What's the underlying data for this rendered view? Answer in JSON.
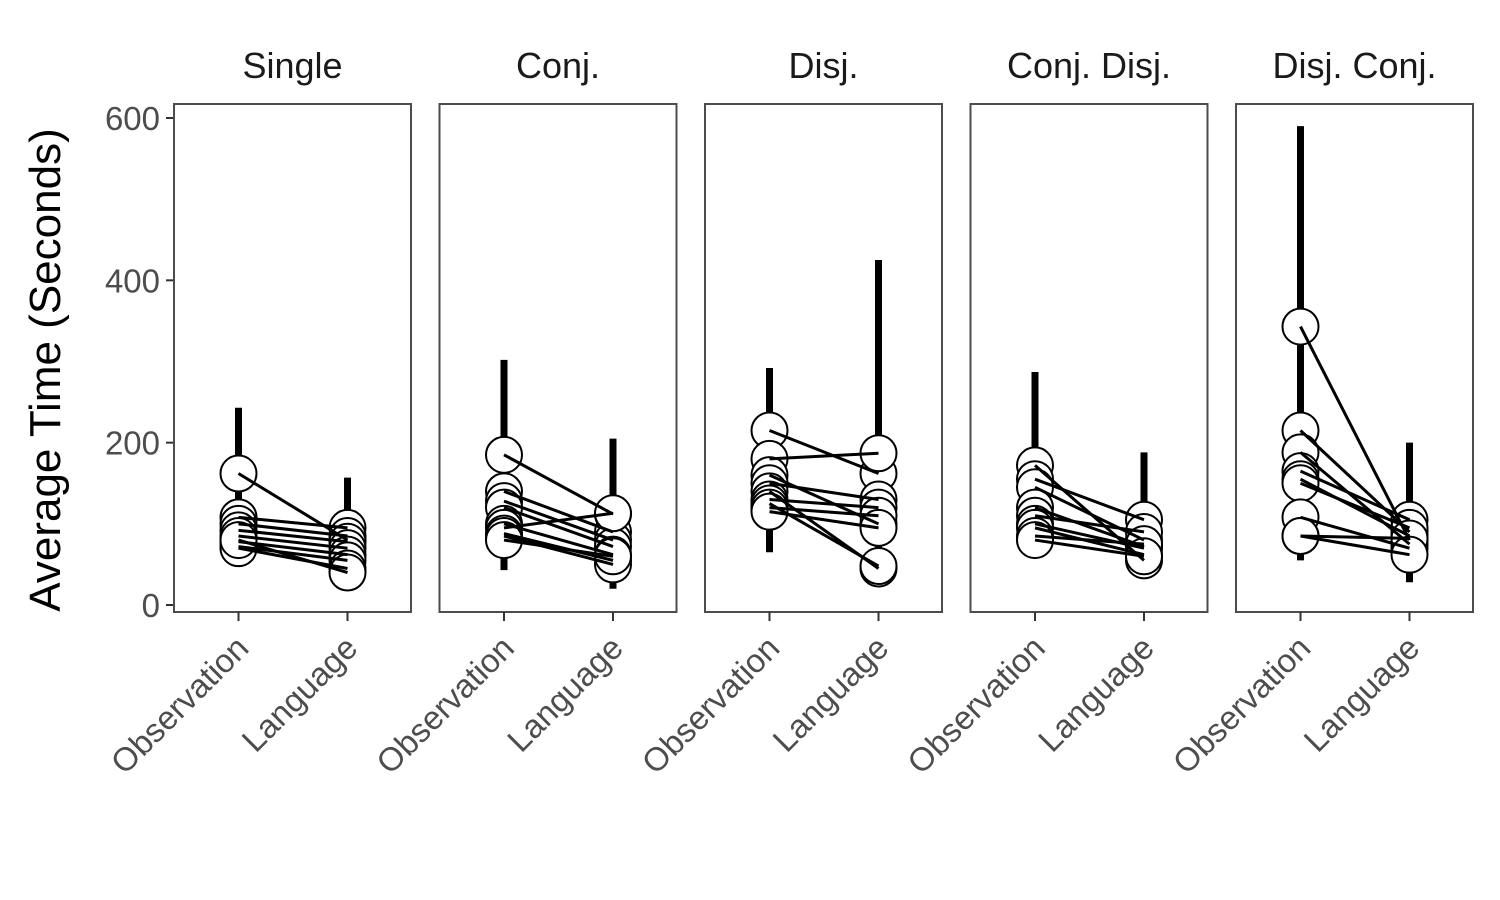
{
  "chart_data": {
    "type": "scatter",
    "ylabel": "Average Time (Seconds)",
    "xlabel": "",
    "ylim": [
      0,
      600
    ],
    "yticks": [
      0,
      200,
      400,
      600
    ],
    "conditions": [
      "Observation",
      "Language"
    ],
    "grid": false,
    "legend": "none",
    "colors": {
      "point_fill": "#ffffff",
      "stroke": "#000000",
      "panel_border": "#4d4d4d",
      "tick_text": "#4d4d4d"
    },
    "panels": [
      {
        "title": "Single",
        "observation_range": [
          68,
          243
        ],
        "language_range": [
          33,
          157
        ],
        "pairs": [
          [
            162,
            80
          ],
          [
            108,
            95
          ],
          [
            100,
            85
          ],
          [
            92,
            78
          ],
          [
            85,
            70
          ],
          [
            78,
            62
          ],
          [
            72,
            55
          ],
          [
            70,
            45
          ],
          [
            80,
            40
          ]
        ]
      },
      {
        "title": "Conj.",
        "observation_range": [
          43,
          302
        ],
        "language_range": [
          20,
          205
        ],
        "pairs": [
          [
            185,
            112
          ],
          [
            140,
            90
          ],
          [
            128,
            80
          ],
          [
            120,
            72
          ],
          [
            100,
            62
          ],
          [
            95,
            113
          ],
          [
            88,
            55
          ],
          [
            85,
            50
          ],
          [
            80,
            60
          ]
        ]
      },
      {
        "title": "Disj.",
        "observation_range": [
          65,
          292
        ],
        "language_range": [
          42,
          425
        ],
        "pairs": [
          [
            215,
            162
          ],
          [
            180,
            187
          ],
          [
            160,
            100
          ],
          [
            150,
            130
          ],
          [
            140,
            45
          ],
          [
            130,
            120
          ],
          [
            125,
            48
          ],
          [
            120,
            110
          ],
          [
            115,
            95
          ]
        ]
      },
      {
        "title": "Conj. Disj.",
        "observation_range": [
          75,
          287
        ],
        "language_range": [
          45,
          188
        ],
        "pairs": [
          [
            172,
            55
          ],
          [
            155,
            105
          ],
          [
            145,
            80
          ],
          [
            120,
            72
          ],
          [
            110,
            90
          ],
          [
            100,
            70
          ],
          [
            95,
            62
          ],
          [
            85,
            75
          ],
          [
            80,
            60
          ]
        ]
      },
      {
        "title": "Disj. Conj.",
        "observation_range": [
          55,
          590
        ],
        "language_range": [
          28,
          200
        ],
        "pairs": [
          [
            343,
            80
          ],
          [
            215,
            90
          ],
          [
            188,
            75
          ],
          [
            165,
            105
          ],
          [
            155,
            85
          ],
          [
            150,
            95
          ],
          [
            108,
            70
          ],
          [
            85,
            82
          ],
          [
            85,
            62
          ]
        ]
      }
    ]
  }
}
